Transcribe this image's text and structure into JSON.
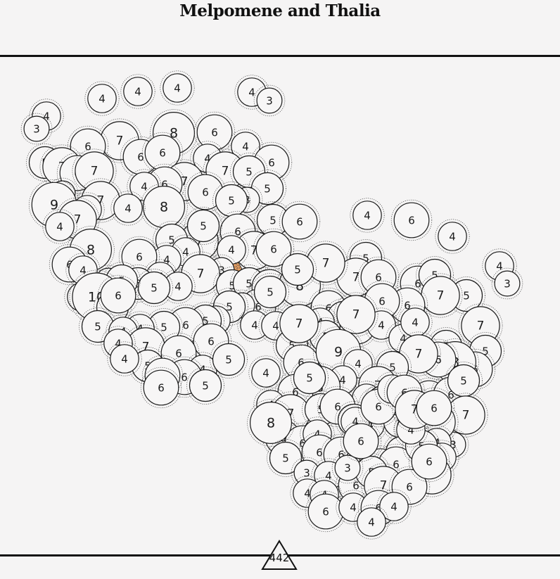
{
  "title": "Melpomene and Thalia",
  "count_label": "442",
  "accent_colors": {
    "orange": "#e8a063",
    "blue": "#9fb3c8"
  },
  "visible_numbers": [
    {
      "region": "left-mask",
      "values": [
        4,
        3,
        4,
        4,
        4,
        4,
        3,
        8,
        6,
        7,
        6,
        4,
        6,
        6,
        5,
        7,
        6,
        7,
        4,
        7,
        6,
        5,
        3,
        7,
        7,
        6,
        4,
        6,
        9,
        8,
        7,
        5,
        4,
        7,
        4,
        3,
        5,
        5,
        6,
        6,
        4,
        5,
        4,
        8,
        7,
        4,
        6,
        6,
        4,
        3,
        4,
        5,
        6,
        7,
        4,
        4,
        5,
        5,
        3,
        5,
        5,
        5,
        6,
        6,
        3,
        5,
        4,
        10,
        5,
        6,
        4,
        5,
        6,
        5,
        4,
        5,
        4,
        7,
        4,
        6,
        6,
        4,
        5,
        6,
        4,
        6,
        6,
        5,
        5,
        4,
        4,
        5,
        6
      ]
    },
    {
      "region": "right-mask",
      "values": [
        4,
        6,
        4,
        4,
        3,
        5,
        7,
        6,
        6,
        5,
        8,
        7,
        5,
        5,
        7,
        6,
        6,
        6,
        5,
        4,
        5,
        6,
        4,
        4,
        4,
        7,
        5,
        5,
        6,
        8,
        6,
        7,
        7,
        5,
        9,
        4,
        4,
        8,
        7,
        4,
        6,
        5,
        7,
        4,
        5,
        6,
        6,
        5,
        4,
        7,
        5,
        6,
        5,
        4,
        6,
        5,
        4,
        7,
        6,
        4,
        3,
        7,
        4,
        6,
        6,
        4,
        8,
        5,
        4,
        7,
        5,
        6,
        5,
        3,
        6,
        5,
        4,
        6,
        4,
        6,
        5,
        3,
        4,
        4,
        7,
        6,
        6,
        4,
        6,
        4,
        4,
        5,
        6,
        4,
        6,
        5,
        6,
        4,
        6,
        7,
        6
      ]
    }
  ]
}
